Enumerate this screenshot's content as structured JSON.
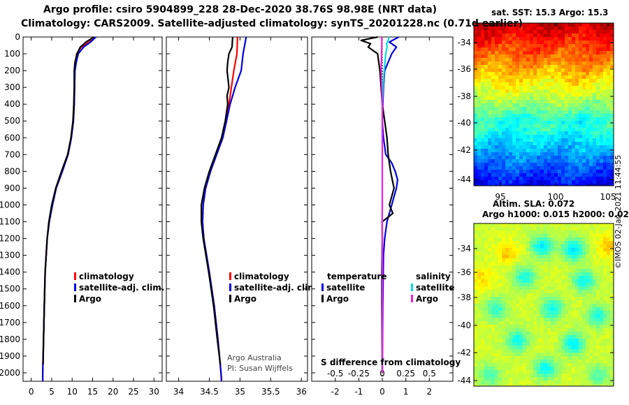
{
  "title": {
    "line1": "Argo profile: csiro 5904899_228 28-Dec-2020 38.76S 98.98E (NRT data)",
    "line2": "Climatology: CARS2009. Satellite-adjusted climatology: synTS_20201228.nc (0.71d earlier)"
  },
  "right_panel": {
    "sst_title": "sat. SST: 15.3 Argo: 15.3",
    "sla_title1": "Altim. SLA: 0.072",
    "sla_title2": "Argo h1000: 0.015 h2000: 0.02",
    "lon_ticks": [
      "95",
      "100",
      "105"
    ],
    "lat_ticks": [
      "-34",
      "-36",
      "-38",
      "-40",
      "-42",
      "-44"
    ],
    "credit": "©IMOS 02-Jan-2021 11:44:55"
  },
  "colors": {
    "climatology": "#ff0000",
    "satellite": "#0000dd",
    "argo": "#000000",
    "sal_satellite": "#00dddd",
    "sal_argo": "#ee22dd"
  },
  "chart_data": [
    {
      "type": "line",
      "name": "temperature_profile",
      "depth_ticks": [
        0,
        100,
        200,
        300,
        400,
        500,
        600,
        700,
        800,
        900,
        1000,
        1100,
        1200,
        1300,
        1400,
        1500,
        1600,
        1700,
        1800,
        1900,
        2000
      ],
      "ylim": [
        2050,
        0
      ],
      "xlim": [
        -2,
        32
      ],
      "x_ticks": [
        "0",
        "5",
        "10",
        "15",
        "20",
        "25",
        "30"
      ],
      "x_tick_values": [
        0,
        5,
        10,
        15,
        20,
        25,
        30
      ],
      "legend": [
        "climatology",
        "satellite-adj. clim.",
        "Argo"
      ],
      "series": [
        {
          "name": "climatology",
          "color": "#ff0000",
          "depth": [
            0,
            30,
            60,
            100,
            150,
            200,
            300,
            400,
            500,
            600,
            700,
            800,
            900,
            1000,
            1100,
            1200,
            1400,
            1600,
            1800,
            2000,
            2050
          ],
          "values": [
            15.1,
            14.2,
            12.2,
            11.1,
            10.8,
            10.6,
            10.6,
            10.5,
            10.3,
            9.8,
            9.0,
            7.6,
            6.1,
            5.2,
            4.4,
            3.9,
            3.4,
            3.2,
            3.0,
            2.8,
            2.8
          ]
        },
        {
          "name": "satellite-adj. clim.",
          "color": "#0000dd",
          "depth": [
            0,
            30,
            60,
            100,
            150,
            200,
            300,
            400,
            500,
            600,
            700,
            800,
            900,
            1000,
            1100,
            1200,
            1400,
            1600,
            1800,
            2000,
            2050
          ],
          "values": [
            15.8,
            14.5,
            12.8,
            11.5,
            11.0,
            10.7,
            10.6,
            10.5,
            10.3,
            9.8,
            9.0,
            7.6,
            6.1,
            5.2,
            4.4,
            3.9,
            3.4,
            3.2,
            3.0,
            2.8,
            2.8
          ]
        },
        {
          "name": "Argo",
          "color": "#000000",
          "depth": [
            0,
            30,
            60,
            100,
            150,
            200,
            300,
            400,
            500,
            600,
            700,
            800,
            900,
            1000,
            1100,
            1200,
            1400,
            1600,
            1800,
            1950
          ],
          "values": [
            15.3,
            13.4,
            12.0,
            11.2,
            10.7,
            10.5,
            10.5,
            10.4,
            10.2,
            9.7,
            8.9,
            7.4,
            6.0,
            5.0,
            4.3,
            3.9,
            3.4,
            3.2,
            3.0,
            2.9
          ]
        }
      ]
    },
    {
      "type": "line",
      "name": "salinity_profile",
      "depth_ticks": [
        0,
        100,
        200,
        300,
        400,
        500,
        600,
        700,
        800,
        900,
        1000,
        1100,
        1200,
        1300,
        1400,
        1500,
        1600,
        1700,
        1800,
        1900,
        2000
      ],
      "ylim": [
        2050,
        0
      ],
      "xlim": [
        33.8,
        36.1
      ],
      "x_ticks": [
        "34",
        "34.5",
        "35",
        "35.5",
        "36"
      ],
      "x_tick_values": [
        34,
        34.5,
        35,
        35.5,
        36
      ],
      "legend": [
        "climatology",
        "satellite-adj. clim.",
        "Argo"
      ],
      "annotations": [
        "Argo Australia",
        "PI: Susan Wijffels"
      ],
      "series": [
        {
          "name": "climatology",
          "color": "#ff0000",
          "depth": [
            0,
            100,
            200,
            300,
            400,
            500,
            600,
            700,
            800,
            900,
            1000,
            1100,
            1200,
            1400,
            1600,
            1800,
            2000,
            2050
          ],
          "values": [
            34.96,
            34.95,
            34.9,
            34.86,
            34.82,
            34.78,
            34.72,
            34.62,
            34.52,
            34.44,
            34.4,
            34.39,
            34.41,
            34.5,
            34.58,
            34.64,
            34.69,
            34.7
          ]
        },
        {
          "name": "satellite-adj. clim.",
          "color": "#0000dd",
          "depth": [
            0,
            100,
            200,
            300,
            400,
            500,
            600,
            700,
            800,
            900,
            1000,
            1100,
            1200,
            1400,
            1600,
            1800,
            2000,
            2050
          ],
          "values": [
            35.1,
            35.05,
            35.02,
            34.92,
            34.84,
            34.78,
            34.72,
            34.62,
            34.52,
            34.44,
            34.4,
            34.39,
            34.41,
            34.5,
            34.58,
            34.64,
            34.69,
            34.7
          ]
        },
        {
          "name": "Argo",
          "color": "#000000",
          "depth": [
            0,
            60,
            100,
            150,
            200,
            300,
            350,
            400,
            500,
            600,
            700,
            800,
            900,
            1000,
            1100,
            1200,
            1400,
            1600,
            1800,
            1950
          ],
          "values": [
            34.88,
            34.87,
            34.82,
            34.8,
            34.79,
            34.82,
            34.79,
            34.8,
            34.76,
            34.7,
            34.6,
            34.5,
            34.42,
            34.37,
            34.37,
            34.4,
            34.49,
            34.57,
            34.63,
            34.68
          ]
        }
      ]
    },
    {
      "type": "line",
      "name": "difference_from_climatology",
      "depth_ticks": [
        0,
        100,
        200,
        300,
        400,
        500,
        600,
        700,
        800,
        900,
        1000,
        1100,
        1200,
        1300,
        1400,
        1500,
        1600,
        1700,
        1800,
        1900,
        2000
      ],
      "ylim": [
        2050,
        0
      ],
      "xlim": [
        -3,
        3
      ],
      "x_ticks": [
        "-2",
        "-1",
        "0",
        "1",
        "2"
      ],
      "x_tick_values": [
        -2,
        -1,
        0,
        1,
        2
      ],
      "top_ticks": [
        "-0.5",
        "-0.25",
        "0",
        "0.25",
        "0.5"
      ],
      "top_tick_values": [
        -0.5,
        -0.25,
        0,
        0.25,
        0.5
      ],
      "xlabel": "S difference from climatology",
      "legend_headers": [
        "temperature",
        "salinity"
      ],
      "legend": [
        "satellite",
        "Argo",
        "satellite",
        "Argo"
      ],
      "series": [
        {
          "name": "temperature satellite",
          "color": "#0000dd",
          "depth": [
            0,
            30,
            60,
            100,
            200,
            300,
            400,
            500,
            600,
            700,
            750,
            800,
            850,
            900,
            950,
            1000,
            1050,
            1100,
            1200,
            1300,
            1600,
            2000
          ],
          "values": [
            0.7,
            0.3,
            0.6,
            0.4,
            0.1,
            0.05,
            0.02,
            0.0,
            0.05,
            0.15,
            0.4,
            0.55,
            0.65,
            0.6,
            0.5,
            0.4,
            0.3,
            0.2,
            0.1,
            0.05,
            0.02,
            0.0
          ]
        },
        {
          "name": "temperature Argo",
          "color": "#000000",
          "depth": [
            0,
            20,
            40,
            60,
            100,
            200,
            300,
            400,
            500,
            600,
            700,
            800,
            900,
            1000,
            1050,
            1100,
            1200,
            1400,
            1600,
            2000
          ],
          "values": [
            -0.2,
            -0.9,
            -0.5,
            -0.6,
            -0.2,
            -0.1,
            -0.05,
            0.0,
            0.1,
            0.2,
            0.25,
            0.35,
            0.5,
            0.3,
            0.45,
            0.0,
            0.0,
            -0.02,
            -0.02,
            0.0
          ]
        },
        {
          "name": "salinity satellite",
          "color": "#00dddd",
          "depth": [
            0,
            20,
            40,
            60,
            100,
            200,
            300,
            400,
            500,
            600,
            700,
            800,
            900,
            1000,
            1100,
            1200,
            1400,
            1600,
            1800,
            2000
          ],
          "values": [
            0.28,
            0.25,
            0.18,
            0.2,
            0.15,
            0.08,
            0.03,
            0.0,
            0.0,
            0.0,
            0.0,
            0.0,
            0.0,
            0.0,
            0.0,
            0.0,
            0.0,
            0.0,
            0.0,
            0.0
          ]
        },
        {
          "name": "salinity Argo",
          "color": "#ee22dd",
          "depth": [
            0,
            40,
            100,
            200,
            300,
            400,
            500,
            600,
            700,
            800,
            900,
            1000,
            1100,
            1200,
            1400,
            1600,
            1800,
            2000
          ],
          "values": [
            -0.02,
            -0.02,
            -0.03,
            -0.05,
            -0.02,
            0.0,
            0.0,
            0.0,
            0.0,
            0.0,
            0.0,
            0.0,
            -0.01,
            0.0,
            0.0,
            0.0,
            0.0,
            0.0
          ]
        }
      ]
    }
  ]
}
